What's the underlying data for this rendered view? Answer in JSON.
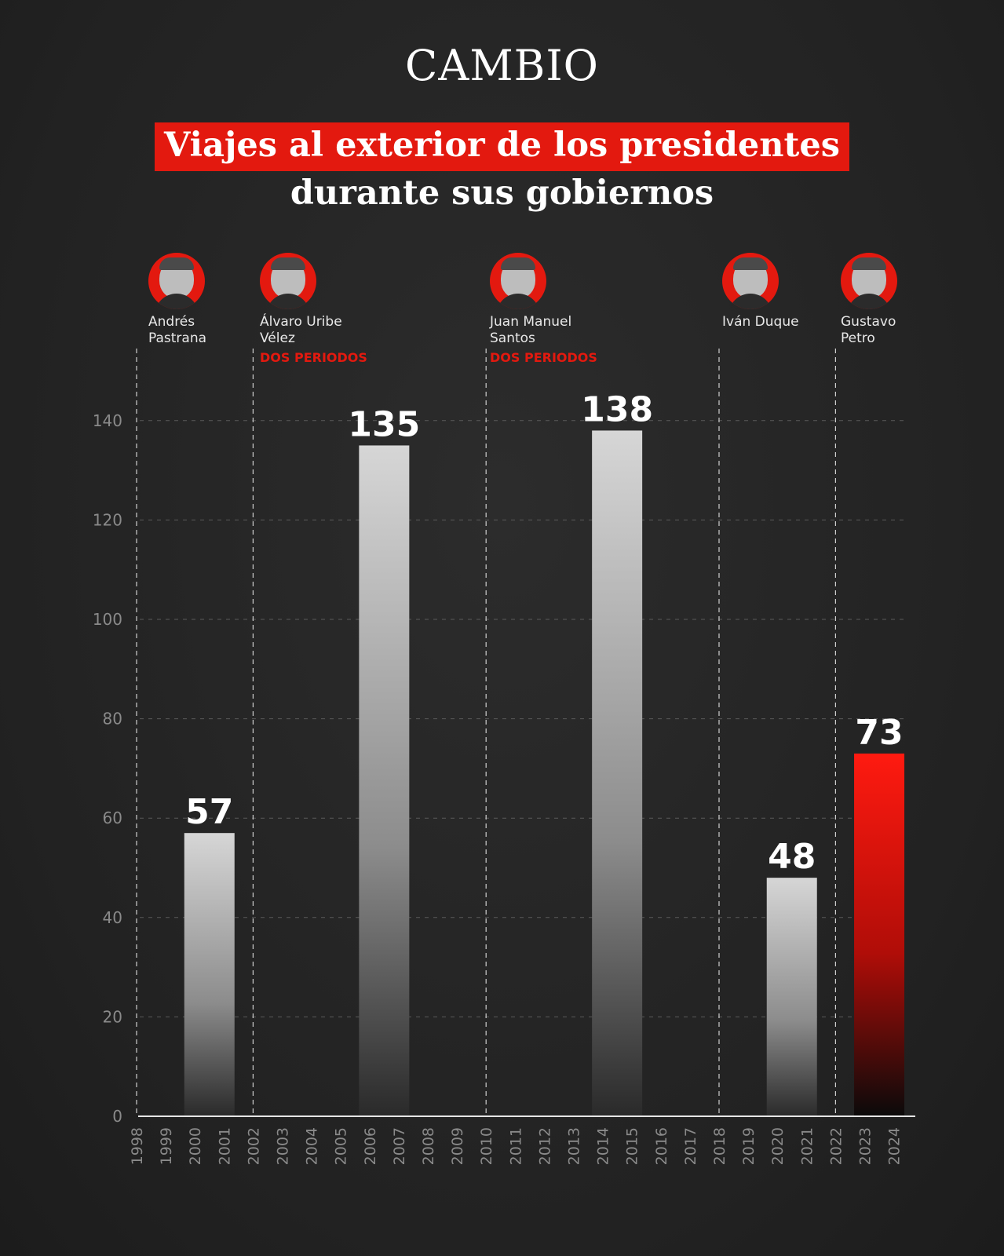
{
  "header": {
    "logo": "CAMBIO",
    "title_line1": "Viajes al exterior de los presidentes",
    "title_line2": "durante sus gobiernos"
  },
  "presidents": [
    {
      "name_line1": "Andrés",
      "name_line2": "Pastrana",
      "term": "",
      "start_year": 1998,
      "end_year": 2002,
      "icon": "portrait-icon"
    },
    {
      "name_line1": "Álvaro Uribe",
      "name_line2": "Vélez",
      "term": "DOS PERIODOS",
      "start_year": 2002,
      "end_year": 2010,
      "icon": "portrait-icon"
    },
    {
      "name_line1": "Juan Manuel",
      "name_line2": "Santos",
      "term": "DOS PERIODOS",
      "start_year": 2010,
      "end_year": 2018,
      "icon": "portrait-icon"
    },
    {
      "name_line1": "Iván Duque",
      "name_line2": "",
      "term": "",
      "start_year": 2018,
      "end_year": 2022,
      "icon": "portrait-icon"
    },
    {
      "name_line1": "Gustavo",
      "name_line2": "Petro",
      "term": "",
      "start_year": 2022,
      "end_year": 2024,
      "icon": "portrait-icon"
    }
  ],
  "colors": {
    "accent": "#e3190f",
    "bar_top": "#d6d6d6",
    "highlight_top": "#ff1a10",
    "background": "#262626"
  },
  "chart_data": {
    "type": "bar",
    "title": "Viajes al exterior de los presidentes durante sus gobiernos",
    "xlabel": "",
    "ylabel": "",
    "ylim": [
      0,
      150
    ],
    "yticks": [
      0,
      20,
      40,
      60,
      80,
      100,
      120,
      140
    ],
    "x_years": [
      "1998",
      "1999",
      "2000",
      "2001",
      "2002",
      "2003",
      "2004",
      "2005",
      "2006",
      "2007",
      "2008",
      "2009",
      "2010",
      "2011",
      "2012",
      "2013",
      "2014",
      "2015",
      "2016",
      "2017",
      "2018",
      "2019",
      "2020",
      "2021",
      "2022",
      "2023",
      "2024"
    ],
    "categories": [
      "Andrés Pastrana",
      "Álvaro Uribe Vélez",
      "Juan Manuel Santos",
      "Iván Duque",
      "Gustavo Petro"
    ],
    "values": [
      57,
      135,
      138,
      48,
      73
    ],
    "bar_center_years": [
      2000.5,
      2006.5,
      2014.5,
      2020.5,
      2023.5
    ],
    "highlight": "Gustavo Petro",
    "grid": true
  }
}
